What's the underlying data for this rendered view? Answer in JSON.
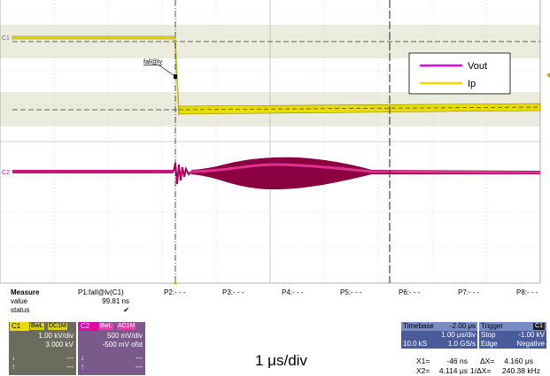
{
  "waveform": {
    "channel_labels": {
      "c1": "C1",
      "c2": "C2"
    },
    "marker_label": "fall@lv",
    "legend": [
      {
        "name": "Vout",
        "color": "#e800e8"
      },
      {
        "name": "Ip",
        "color": "#f0d800"
      }
    ],
    "colors": {
      "c1_trace": "#e8dc00",
      "c2_trace": "#d0107a",
      "band": "#ececde"
    }
  },
  "params": {
    "labels": [
      "P2:- - -",
      "P3:- - -",
      "P4:- - -",
      "P5:- - -",
      "P6:- - -",
      "P7:- - -",
      "P8:- - -"
    ]
  },
  "measure": {
    "title": "Measure",
    "p1_label": "P1:fall@lv(C1)",
    "rows": [
      {
        "label": "value",
        "value": "99.81 ns"
      },
      {
        "label": "status",
        "value": "✔"
      }
    ]
  },
  "channels": [
    {
      "tag": "C1",
      "badge1": "BwL",
      "badge2": "DC1M",
      "scale": "1.00 kV/div",
      "offset": "3.000 kV",
      "row3": "---",
      "row4": "---",
      "color": "#e8dc00"
    },
    {
      "tag": "C2",
      "badge1": "BwL",
      "badge2": "AC1M",
      "scale": "500 mV/div",
      "offset": "-500 mV ofst",
      "row3": "---",
      "row4": "---",
      "color": "#e800a8"
    }
  ],
  "footer_label": "1 μs/div",
  "timebase": {
    "title": "Timebase",
    "delay": "-2.00 μs",
    "per_div": "1.00 μs/div",
    "samples": "10.0 kS",
    "rate": "1.0 GS/s"
  },
  "trigger": {
    "title": "Trigger",
    "source": "C1",
    "mode": "Stop",
    "level": "-1.00 kV",
    "type": "Edge",
    "slope": "Negative"
  },
  "cursors": {
    "x1_label": "X1=",
    "x1_value": "-46 ns",
    "dx_label": "ΔX=",
    "dx_value": "4.160 μs",
    "x2_label": "X2=",
    "x2_value": "4.114 μs",
    "inv_label": "1/ΔX=",
    "inv_value": "240.38 kHz"
  }
}
